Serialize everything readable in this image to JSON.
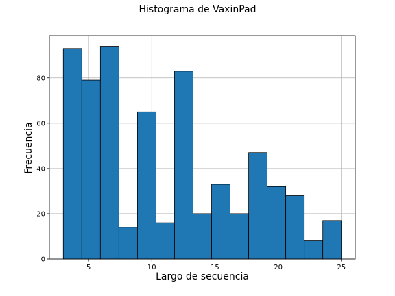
{
  "chart_data": {
    "type": "bar",
    "title": "Histograma de VaxinPad",
    "xlabel": "Largo de secuencia",
    "ylabel": "Frecuencia",
    "bin_edges": [
      3.0,
      4.4667,
      5.9333,
      7.4,
      8.8667,
      10.3333,
      11.8,
      13.2667,
      14.7333,
      16.2,
      17.6667,
      19.1333,
      20.6,
      22.0667,
      23.5333,
      25.0
    ],
    "values": [
      93,
      79,
      94,
      14,
      65,
      16,
      83,
      20,
      33,
      20,
      47,
      32,
      28,
      8,
      17
    ],
    "xlim": [
      1.9,
      26.1
    ],
    "ylim": [
      0,
      98.7
    ],
    "xticks": [
      5,
      10,
      15,
      20,
      25
    ],
    "yticks": [
      0,
      20,
      40,
      60,
      80
    ],
    "grid": true,
    "bar_color": "#1f77b4",
    "edge_color": "#000000"
  }
}
